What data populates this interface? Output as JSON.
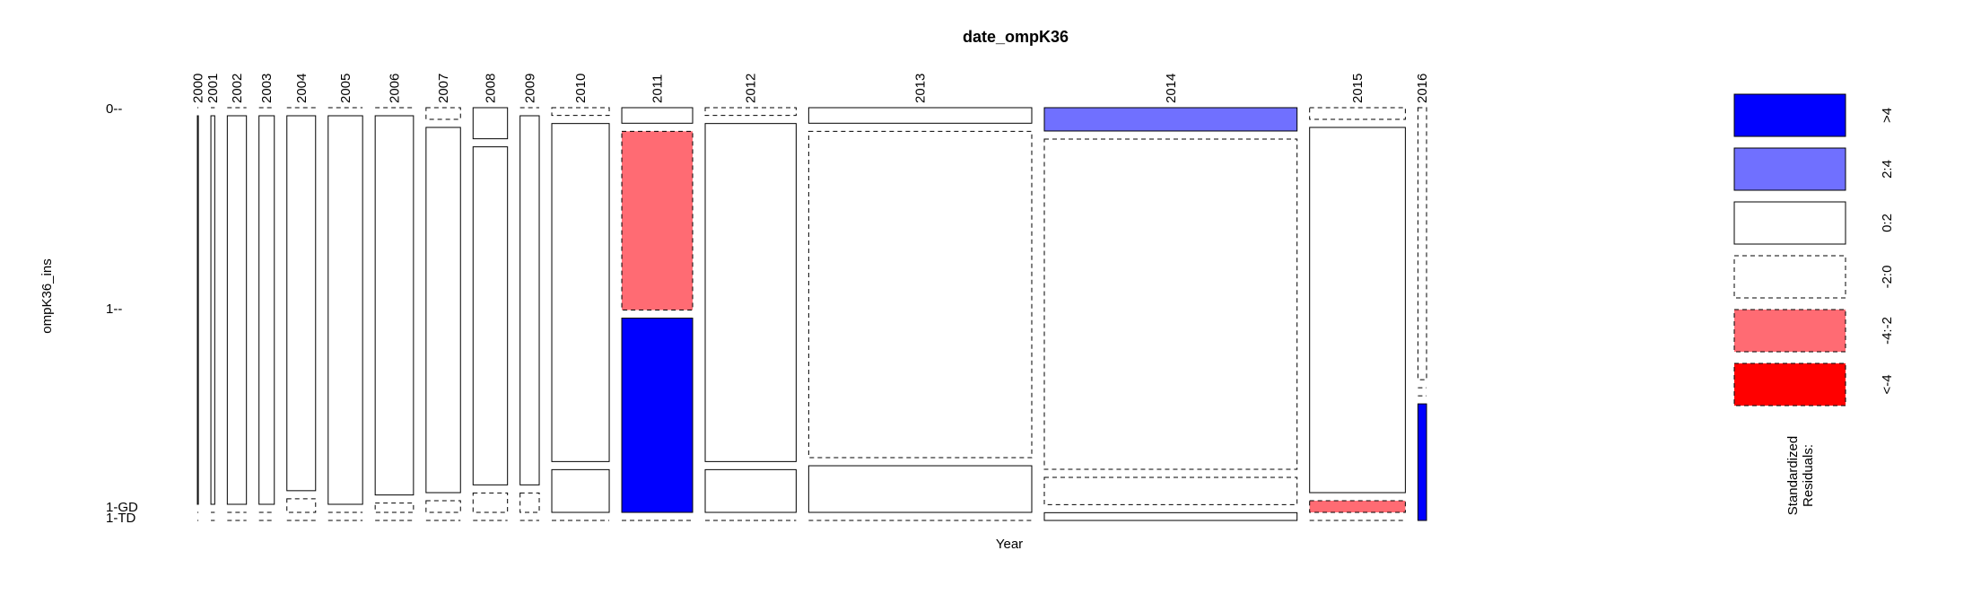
{
  "chart_data": {
    "type": "mosaic",
    "title": "date_ompK36",
    "xlabel": "Year",
    "ylabel": "ompK36_ins",
    "row_levels": [
      "0",
      "1",
      "1-GD",
      "1-TD"
    ],
    "row_tick_labels": [
      "0--",
      "1--",
      "1-GD",
      "1-TD"
    ],
    "columns": [
      {
        "year": "2000",
        "width_share": 0.001,
        "cells": [
          0.0,
          1.0,
          0.0,
          0.0
        ],
        "styles": [
          "dashed",
          "solid",
          "dashed",
          "dashed"
        ]
      },
      {
        "year": "2001",
        "width_share": 0.004,
        "cells": [
          0.0,
          1.0,
          0.0,
          0.0
        ],
        "styles": [
          "dashed",
          "solid",
          "dashed",
          "dashed"
        ]
      },
      {
        "year": "2002",
        "width_share": 0.02,
        "cells": [
          0.0,
          1.0,
          0.0,
          0.0
        ],
        "styles": [
          "dashed",
          "solid",
          "dashed",
          "dashed"
        ]
      },
      {
        "year": "2003",
        "width_share": 0.016,
        "cells": [
          0.0,
          1.0,
          0.0,
          0.0
        ],
        "styles": [
          "dashed",
          "solid",
          "dashed",
          "dashed"
        ]
      },
      {
        "year": "2004",
        "width_share": 0.03,
        "cells": [
          0.0,
          0.965,
          0.035,
          0.0
        ],
        "styles": [
          "dashed",
          "solid",
          "dashed",
          "dashed"
        ]
      },
      {
        "year": "2005",
        "width_share": 0.036,
        "cells": [
          0.0,
          1.0,
          0.0,
          0.0
        ],
        "styles": [
          "dashed",
          "solid",
          "dashed",
          "dashed"
        ]
      },
      {
        "year": "2006",
        "width_share": 0.04,
        "cells": [
          0.0,
          0.976,
          0.024,
          0.0
        ],
        "styles": [
          "dashed",
          "solid",
          "dashed",
          "dashed"
        ]
      },
      {
        "year": "2007",
        "width_share": 0.036,
        "cells": [
          0.03,
          0.94,
          0.03,
          0.0
        ],
        "styles": [
          "dashed",
          "solid",
          "dashed",
          "dashed"
        ]
      },
      {
        "year": "2008",
        "width_share": 0.036,
        "cells": [
          0.08,
          0.87,
          0.05,
          0.0
        ],
        "styles": [
          "solid",
          "solid",
          "dashed",
          "dashed"
        ]
      },
      {
        "year": "2009",
        "width_share": 0.02,
        "cells": [
          0.0,
          0.95,
          0.05,
          0.0
        ],
        "styles": [
          "dashed",
          "solid",
          "dashed",
          "dashed"
        ]
      },
      {
        "year": "2010",
        "width_share": 0.06,
        "cells": [
          0.02,
          0.87,
          0.11,
          0.0
        ],
        "styles": [
          "dashed",
          "solid",
          "solid",
          "dashed"
        ]
      },
      {
        "year": "2011",
        "width_share": 0.074,
        "cells": [
          0.04,
          0.46,
          0.5,
          0.0
        ],
        "styles": [
          "solid",
          "neg-2-4",
          "pos-4",
          "dashed"
        ]
      },
      {
        "year": "2012",
        "width_share": 0.095,
        "cells": [
          0.02,
          0.87,
          0.11,
          0.0
        ],
        "styles": [
          "dashed",
          "solid",
          "solid",
          "dashed"
        ]
      },
      {
        "year": "2013",
        "width_share": 0.233,
        "cells": [
          0.04,
          0.84,
          0.12,
          0.0
        ],
        "styles": [
          "solid",
          "dashed",
          "solid",
          "dashed"
        ]
      },
      {
        "year": "2014",
        "width_share": 0.264,
        "cells": [
          0.06,
          0.85,
          0.07,
          0.02
        ],
        "styles": [
          "pos-2-4",
          "dashed",
          "dashed",
          "solid"
        ]
      },
      {
        "year": "2015",
        "width_share": 0.1,
        "cells": [
          0.03,
          0.94,
          0.03,
          0.0
        ],
        "styles": [
          "dashed",
          "solid",
          "neg-2-4",
          "solid"
        ]
      },
      {
        "year": "2016",
        "width_share": 0.009,
        "cells": [
          0.7,
          0.0,
          0.0,
          0.3
        ],
        "styles": [
          "dashed",
          "dashed",
          "dashed",
          "pos-4"
        ]
      }
    ],
    "legend": {
      "title_line1": "Standardized",
      "title_line2": "Residuals:",
      "items": [
        {
          "key": "pos-4",
          "label": ">4",
          "fill": "#0000FF",
          "dashed": false
        },
        {
          "key": "pos-2-4",
          "label": "2:4",
          "fill": "#7070FF",
          "dashed": false
        },
        {
          "key": "pos-0-2",
          "label": "0:2",
          "fill": "#FFFFFF",
          "dashed": false
        },
        {
          "key": "neg-0-2",
          "label": "-2:0",
          "fill": "#FFFFFF",
          "dashed": true
        },
        {
          "key": "neg-2-4",
          "label": "-4:-2",
          "fill": "#FF6B73",
          "dashed": true
        },
        {
          "key": "neg-4",
          "label": "<-4",
          "fill": "#FF0000",
          "dashed": true
        }
      ]
    }
  }
}
